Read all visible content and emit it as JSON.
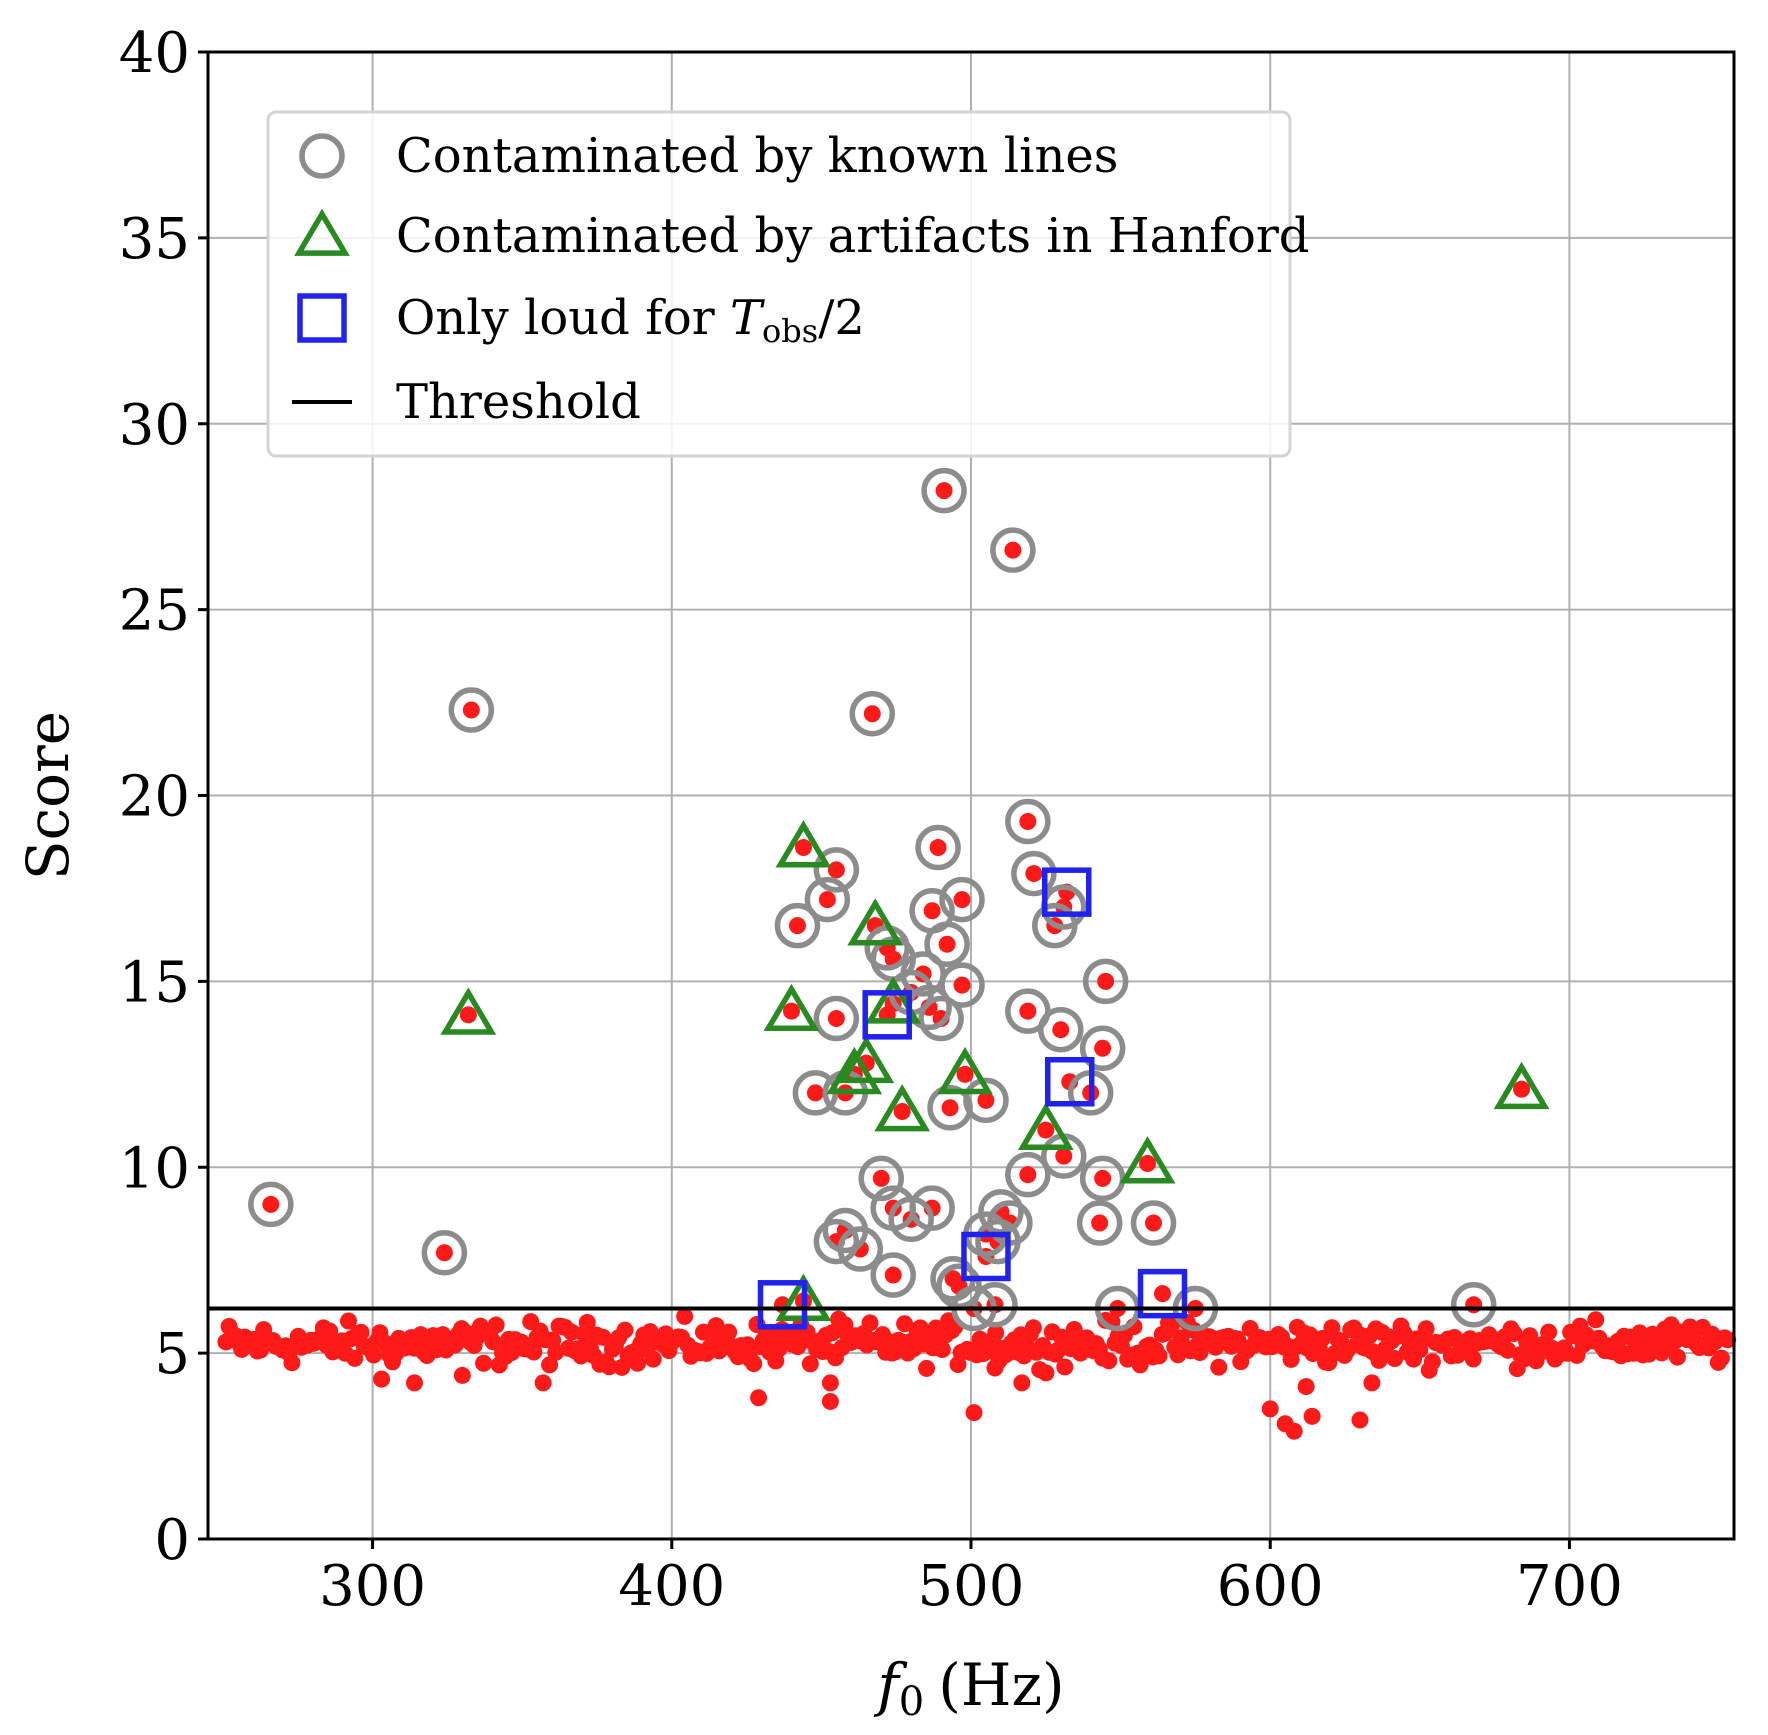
{
  "chart_data": {
    "type": "scatter",
    "xlabel_var": "f",
    "xlabel_sub": "0",
    "xlabel_unit": "(Hz)",
    "ylabel": "Score",
    "xlim": [
      245,
      755
    ],
    "ylim": [
      0,
      40
    ],
    "xticks": [
      300,
      400,
      500,
      600,
      700
    ],
    "yticks": [
      0,
      5,
      10,
      15,
      20,
      25,
      30,
      35,
      40
    ],
    "grid": true,
    "legend_position": "top-left",
    "threshold": 6.2,
    "legend": {
      "known_lines": "Contaminated by known lines",
      "hanford": "Contaminated by artifacts in Hanford",
      "loud_prefix": "Only loud for ",
      "loud_var": "T",
      "loud_sub": "obs",
      "loud_suffix": "/2",
      "threshold": "Threshold"
    },
    "colors": {
      "points": "#ff1a1a",
      "known_lines": "#8c8c8c",
      "hanford": "#2a8a22",
      "loud": "#2222ee",
      "threshold": "#000000",
      "grid": "#b0b0b0"
    },
    "known_lines_points": [
      [
        266,
        9.0
      ],
      [
        324,
        7.7
      ],
      [
        333,
        22.3
      ],
      [
        467,
        22.2
      ],
      [
        491,
        28.2
      ],
      [
        514,
        26.6
      ],
      [
        519,
        19.3
      ],
      [
        489,
        18.6
      ],
      [
        455,
        18.0
      ],
      [
        521,
        17.9
      ],
      [
        452,
        17.2
      ],
      [
        497,
        17.2
      ],
      [
        531,
        17.0
      ],
      [
        528,
        16.5
      ],
      [
        442,
        16.5
      ],
      [
        487,
        16.9
      ],
      [
        492,
        16.0
      ],
      [
        472,
        15.9
      ],
      [
        474,
        15.6
      ],
      [
        545,
        15.0
      ],
      [
        484,
        15.2
      ],
      [
        497,
        14.9
      ],
      [
        480,
        14.7
      ],
      [
        486,
        14.3
      ],
      [
        490,
        14.0
      ],
      [
        519,
        14.2
      ],
      [
        455,
        14.0
      ],
      [
        530,
        13.7
      ],
      [
        544,
        13.2
      ],
      [
        458,
        12.0
      ],
      [
        448,
        12.0
      ],
      [
        540,
        12.0
      ],
      [
        493,
        11.6
      ],
      [
        505,
        11.8
      ],
      [
        531,
        10.3
      ],
      [
        519,
        9.8
      ],
      [
        544,
        9.7
      ],
      [
        561,
        8.5
      ],
      [
        543,
        8.5
      ],
      [
        470,
        9.7
      ],
      [
        474,
        8.9
      ],
      [
        480,
        8.6
      ],
      [
        487,
        8.9
      ],
      [
        510,
        8.8
      ],
      [
        513,
        8.5
      ],
      [
        505,
        8.2
      ],
      [
        509,
        8.0
      ],
      [
        458,
        8.3
      ],
      [
        455,
        8.0
      ],
      [
        463,
        7.8
      ],
      [
        474,
        7.1
      ],
      [
        494,
        7.0
      ],
      [
        496,
        6.8
      ],
      [
        501,
        6.2
      ],
      [
        508,
        6.3
      ],
      [
        549,
        6.2
      ],
      [
        575,
        6.2
      ],
      [
        668,
        6.3
      ]
    ],
    "hanford_points": [
      [
        332,
        14.1
      ],
      [
        444,
        18.6
      ],
      [
        440,
        14.2
      ],
      [
        468,
        16.5
      ],
      [
        474,
        14.4
      ],
      [
        465,
        12.8
      ],
      [
        461,
        12.5
      ],
      [
        477,
        11.5
      ],
      [
        498,
        12.5
      ],
      [
        525,
        11.0
      ],
      [
        559,
        10.1
      ],
      [
        684,
        12.1
      ],
      [
        444,
        6.4
      ]
    ],
    "loud_points": [
      [
        532,
        17.4
      ],
      [
        472,
        14.1
      ],
      [
        533,
        12.3
      ],
      [
        505,
        7.6
      ],
      [
        437,
        6.3
      ],
      [
        564,
        6.6
      ]
    ],
    "background_points_note": "several hundred low-score points between 250 and 755 Hz, mostly scores 4.5-6.0 with a few dipping to ~3",
    "background_outliers": [
      [
        429,
        3.8
      ],
      [
        453,
        3.7
      ],
      [
        453,
        4.2
      ],
      [
        501,
        3.4
      ],
      [
        508,
        4.6
      ],
      [
        517,
        4.2
      ],
      [
        600,
        3.5
      ],
      [
        605,
        3.1
      ],
      [
        608,
        2.9
      ],
      [
        612,
        4.1
      ],
      [
        614,
        3.3
      ],
      [
        630,
        3.2
      ],
      [
        634,
        4.2
      ],
      [
        314,
        4.2
      ],
      [
        303,
        4.3
      ],
      [
        357,
        4.2
      ],
      [
        330,
        4.4
      ]
    ]
  }
}
